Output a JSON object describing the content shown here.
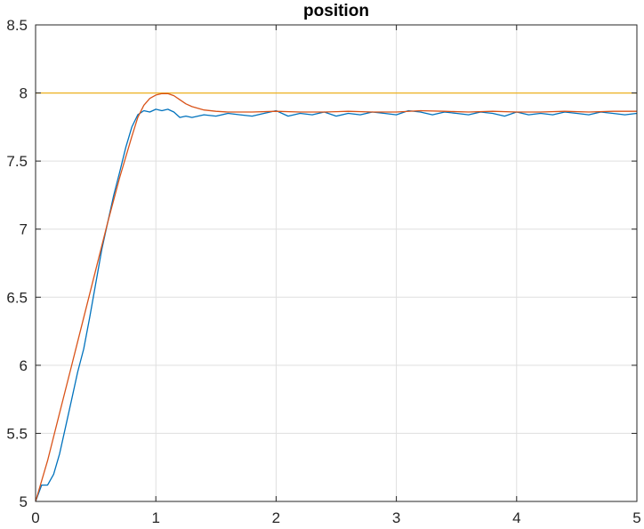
{
  "chart_data": {
    "type": "line",
    "title": "position",
    "xlabel": "",
    "ylabel": "",
    "xlim": [
      0,
      5
    ],
    "ylim": [
      5,
      8.5
    ],
    "x_ticks": [
      0,
      1,
      2,
      3,
      4,
      5
    ],
    "x_tick_labels": [
      "0",
      "1",
      "2",
      "3",
      "4",
      "5"
    ],
    "y_ticks": [
      5,
      5.5,
      6,
      6.5,
      7,
      7.5,
      8,
      8.5
    ],
    "y_tick_labels": [
      "5",
      "5.5",
      "6",
      "6.5",
      "7",
      "7.5",
      "8",
      "8.5"
    ],
    "grid": true,
    "legend": "none",
    "series": [
      {
        "color": "#0072BD",
        "x": [
          0.0,
          0.05,
          0.1,
          0.15,
          0.2,
          0.25,
          0.3,
          0.35,
          0.4,
          0.45,
          0.5,
          0.55,
          0.6,
          0.65,
          0.7,
          0.75,
          0.8,
          0.85,
          0.9,
          0.95,
          1.0,
          1.05,
          1.1,
          1.15,
          1.2,
          1.25,
          1.3,
          1.4,
          1.5,
          1.6,
          1.7,
          1.8,
          1.9,
          2.0,
          2.1,
          2.2,
          2.3,
          2.4,
          2.5,
          2.6,
          2.7,
          2.8,
          2.9,
          3.0,
          3.1,
          3.2,
          3.3,
          3.4,
          3.5,
          3.6,
          3.7,
          3.8,
          3.9,
          4.0,
          4.1,
          4.2,
          4.3,
          4.4,
          4.5,
          4.6,
          4.7,
          4.8,
          4.9,
          5.0
        ],
        "y": [
          5.0,
          5.12,
          5.12,
          5.2,
          5.35,
          5.55,
          5.75,
          5.95,
          6.12,
          6.35,
          6.6,
          6.85,
          7.05,
          7.25,
          7.42,
          7.6,
          7.75,
          7.84,
          7.87,
          7.86,
          7.88,
          7.87,
          7.88,
          7.86,
          7.82,
          7.83,
          7.82,
          7.84,
          7.83,
          7.85,
          7.84,
          7.83,
          7.85,
          7.87,
          7.83,
          7.85,
          7.84,
          7.86,
          7.83,
          7.85,
          7.84,
          7.86,
          7.85,
          7.84,
          7.87,
          7.86,
          7.84,
          7.86,
          7.85,
          7.84,
          7.86,
          7.85,
          7.83,
          7.86,
          7.84,
          7.85,
          7.84,
          7.86,
          7.85,
          7.84,
          7.86,
          7.85,
          7.84,
          7.85
        ]
      },
      {
        "color": "#D95319",
        "x": [
          0.0,
          0.1,
          0.2,
          0.3,
          0.4,
          0.5,
          0.6,
          0.7,
          0.8,
          0.85,
          0.9,
          0.95,
          1.0,
          1.05,
          1.1,
          1.15,
          1.2,
          1.25,
          1.3,
          1.4,
          1.5,
          1.6,
          1.8,
          2.0,
          2.2,
          2.4,
          2.6,
          2.8,
          3.0,
          3.2,
          3.4,
          3.6,
          3.8,
          4.0,
          4.2,
          4.4,
          4.6,
          4.8,
          5.0
        ],
        "y": [
          5.0,
          5.3,
          5.65,
          6.0,
          6.35,
          6.7,
          7.05,
          7.38,
          7.68,
          7.82,
          7.91,
          7.96,
          7.985,
          7.995,
          7.995,
          7.98,
          7.95,
          7.92,
          7.9,
          7.875,
          7.865,
          7.86,
          7.86,
          7.865,
          7.86,
          7.86,
          7.865,
          7.86,
          7.86,
          7.87,
          7.865,
          7.86,
          7.865,
          7.86,
          7.86,
          7.865,
          7.86,
          7.865,
          7.865
        ]
      },
      {
        "color": "#EDB120",
        "x": [
          0.0,
          5.0
        ],
        "y": [
          8.0,
          8.0
        ]
      }
    ]
  }
}
